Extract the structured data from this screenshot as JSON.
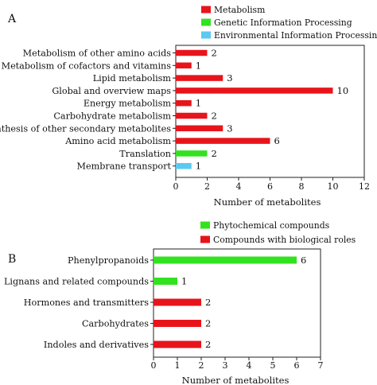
{
  "chart_data": [
    {
      "panel": "A",
      "type": "bar",
      "orientation": "horizontal",
      "title": "",
      "xlabel": "Number of metabolites",
      "ylabel": "",
      "xlim": [
        0,
        12
      ],
      "xticks": [
        0,
        2,
        4,
        6,
        8,
        10,
        12
      ],
      "grid": false,
      "legend_position": "top-right",
      "legend": [
        {
          "name": "Metabolism",
          "color": "#e8141b"
        },
        {
          "name": "Genetic Information Processing",
          "color": "#33e21f"
        },
        {
          "name": "Environmental Information Processing",
          "color": "#5bc9f0"
        }
      ],
      "categories": [
        "Metabolism of other amino acids",
        "Metabolism of cofactors and vitamins",
        "Lipid metabolism",
        "Global and overview maps",
        "Energy metabolism",
        "Carbohydrate metabolism",
        "Biosynthesis of other secondary metabolites",
        "Amino acid metabolism",
        "Translation",
        "Membrane transport"
      ],
      "values": [
        2,
        1,
        3,
        10,
        1,
        2,
        3,
        6,
        2,
        1
      ],
      "groups": [
        0,
        0,
        0,
        0,
        0,
        0,
        0,
        0,
        1,
        2
      ]
    },
    {
      "panel": "B",
      "type": "bar",
      "orientation": "horizontal",
      "title": "",
      "xlabel": "Number of metabolites",
      "ylabel": "",
      "xlim": [
        0,
        7
      ],
      "xticks": [
        0,
        1,
        2,
        3,
        4,
        5,
        6,
        7
      ],
      "grid": false,
      "legend_position": "top-right",
      "legend": [
        {
          "name": "Phytochemical compounds",
          "color": "#33e21f"
        },
        {
          "name": "Compounds with biological roles",
          "color": "#e8141b"
        }
      ],
      "categories": [
        "Phenylpropanoids",
        "Lignans and related compounds",
        "Hormones and transmitters",
        "Carbohydrates",
        "Indoles and derivatives"
      ],
      "values": [
        6,
        1,
        2,
        2,
        2
      ],
      "groups": [
        0,
        0,
        1,
        1,
        1
      ]
    }
  ]
}
